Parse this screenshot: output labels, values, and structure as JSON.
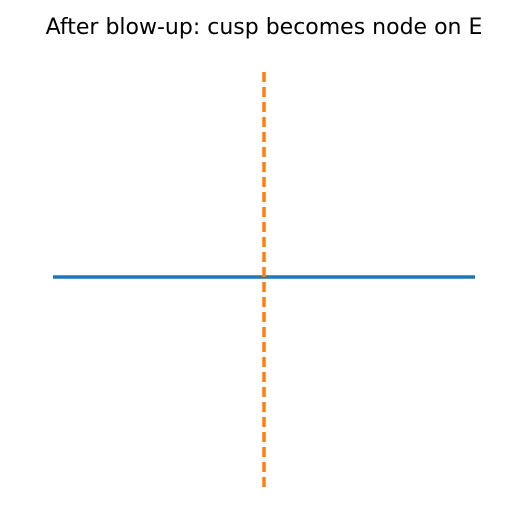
{
  "figure": {
    "title": "After blow-up: cusp becomes node on E"
  },
  "chart_data": {
    "type": "line",
    "title": "After blow-up: cusp becomes node on E",
    "xlim": [
      -1,
      1
    ],
    "ylim": [
      -1,
      1
    ],
    "grid": false,
    "axes_visible": false,
    "series": [
      {
        "x": [
          -1,
          1
        ],
        "y": [
          0,
          0
        ],
        "color": "#1f77b4",
        "style": "solid"
      },
      {
        "x": [
          0,
          0
        ],
        "y": [
          -1,
          1
        ],
        "color": "#ff7f0e",
        "style": "dashed"
      }
    ]
  }
}
